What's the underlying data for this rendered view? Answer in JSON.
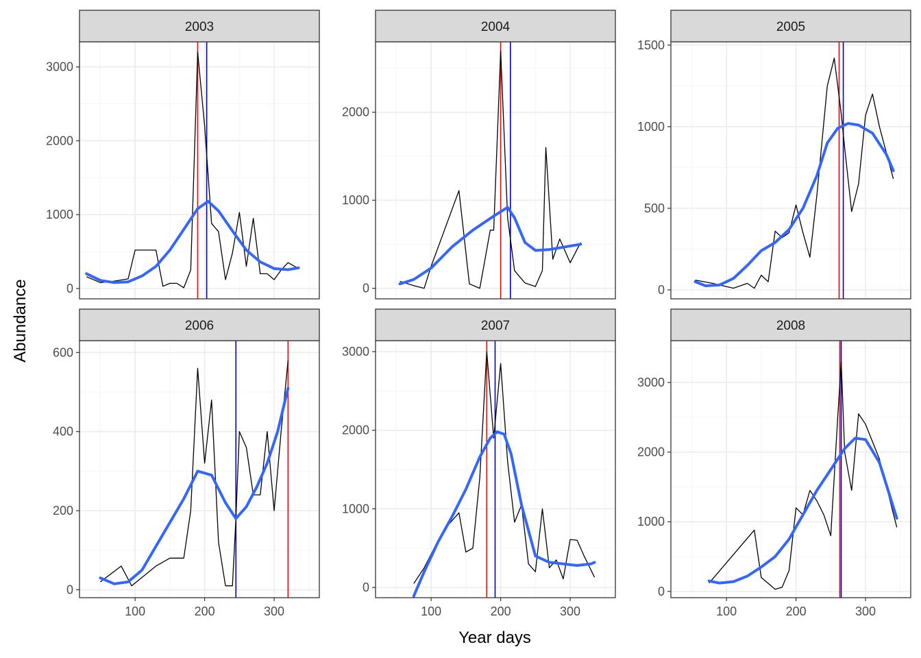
{
  "figure": {
    "xlabel": "Year days",
    "ylabel": "Abundance"
  },
  "colors": {
    "panel_border": "#333333",
    "strip_fill": "#d9d9d9",
    "grid_major": "#ebebeb",
    "grid_minor": "#f5f5f5",
    "observed": "#000000",
    "smooth": "#3366ff",
    "vline_red": "#ff0000",
    "vline_blue": "#0000cd"
  },
  "chart_data": [
    {
      "type": "line",
      "panel": "2003",
      "xlim": [
        20,
        365
      ],
      "ylim": [
        -140,
        3340
      ],
      "yticks": [
        0,
        1000,
        2000,
        3000
      ],
      "xticks": [
        100,
        200,
        300
      ],
      "series": [
        {
          "x": [
            30,
            50,
            70,
            90,
            100,
            130,
            140,
            150,
            160,
            170,
            180,
            190,
            200,
            210,
            220,
            230,
            240,
            250,
            260,
            270,
            280,
            290,
            300,
            310,
            320,
            335
          ],
          "y": [
            160,
            80,
            100,
            130,
            520,
            520,
            30,
            70,
            70,
            10,
            250,
            3200,
            2200,
            880,
            770,
            120,
            480,
            1030,
            300,
            950,
            200,
            200,
            120,
            250,
            350,
            270
          ]
        },
        {
          "x": [
            30,
            50,
            70,
            90,
            110,
            130,
            150,
            170,
            190,
            205,
            220,
            240,
            260,
            280,
            300,
            320,
            335
          ],
          "y": [
            200,
            110,
            80,
            90,
            170,
            300,
            520,
            800,
            1080,
            1180,
            1050,
            780,
            520,
            360,
            270,
            255,
            280
          ]
        }
      ],
      "vlines": [
        {
          "x": 190,
          "color": "red"
        },
        {
          "x": 203,
          "color": "blue"
        }
      ]
    },
    {
      "type": "line",
      "panel": "2004",
      "xlim": [
        20,
        365
      ],
      "ylim": [
        -120,
        2800
      ],
      "yticks": [
        0,
        1000,
        2000
      ],
      "xticks": [
        100,
        200,
        300
      ],
      "series": [
        {
          "x": [
            55,
            75,
            90,
            100,
            140,
            155,
            170,
            185,
            190,
            200,
            210,
            220,
            235,
            250,
            260,
            265,
            275,
            285,
            300,
            315
          ],
          "y": [
            80,
            30,
            0,
            250,
            1110,
            50,
            0,
            660,
            660,
            2700,
            800,
            200,
            60,
            20,
            200,
            1600,
            330,
            560,
            290,
            520
          ]
        },
        {
          "x": [
            55,
            75,
            100,
            130,
            160,
            190,
            210,
            220,
            235,
            250,
            270,
            300,
            315
          ],
          "y": [
            50,
            100,
            230,
            470,
            660,
            820,
            920,
            800,
            520,
            430,
            440,
            480,
            500
          ]
        }
      ],
      "vlines": [
        {
          "x": 200,
          "color": "red"
        },
        {
          "x": 214,
          "color": "blue"
        }
      ]
    },
    {
      "type": "line",
      "panel": "2005",
      "xlim": [
        20,
        365
      ],
      "ylim": [
        -55,
        1520
      ],
      "yticks": [
        0,
        500,
        1000,
        1500
      ],
      "xticks": [
        100,
        200,
        300
      ],
      "series": [
        {
          "x": [
            55,
            80,
            110,
            130,
            140,
            150,
            160,
            170,
            180,
            190,
            200,
            210,
            220,
            230,
            245,
            255,
            265,
            270,
            280,
            290,
            300,
            310,
            320,
            340
          ],
          "y": [
            60,
            40,
            10,
            40,
            10,
            90,
            50,
            360,
            320,
            350,
            520,
            350,
            200,
            580,
            1250,
            1420,
            1080,
            870,
            480,
            650,
            1070,
            1200,
            1000,
            680
          ]
        },
        {
          "x": [
            55,
            70,
            90,
            110,
            130,
            150,
            170,
            190,
            210,
            230,
            245,
            260,
            275,
            290,
            310,
            330,
            340
          ],
          "y": [
            50,
            25,
            30,
            70,
            150,
            240,
            290,
            370,
            500,
            700,
            900,
            990,
            1020,
            1010,
            960,
            830,
            730
          ]
        }
      ],
      "vlines": [
        {
          "x": 262,
          "color": "red"
        },
        {
          "x": 268,
          "color": "blue"
        }
      ]
    },
    {
      "type": "line",
      "panel": "2006",
      "xlim": [
        20,
        365
      ],
      "ylim": [
        -20,
        630
      ],
      "yticks": [
        0,
        200,
        400,
        600
      ],
      "xticks": [
        100,
        200,
        300
      ],
      "series": [
        {
          "x": [
            50,
            80,
            95,
            130,
            150,
            170,
            180,
            190,
            200,
            210,
            220,
            230,
            240,
            245,
            250,
            260,
            270,
            280,
            290,
            300,
            310,
            320
          ],
          "y": [
            20,
            60,
            10,
            60,
            80,
            80,
            200,
            560,
            320,
            480,
            120,
            10,
            10,
            180,
            400,
            360,
            240,
            240,
            400,
            200,
            400,
            580
          ]
        },
        {
          "x": [
            50,
            70,
            90,
            110,
            130,
            150,
            170,
            190,
            210,
            230,
            245,
            260,
            275,
            290,
            305,
            320
          ],
          "y": [
            30,
            15,
            20,
            50,
            110,
            170,
            230,
            300,
            290,
            220,
            180,
            210,
            260,
            320,
            400,
            510
          ]
        }
      ],
      "vlines": [
        {
          "x": 245,
          "color": "blue"
        },
        {
          "x": 320,
          "color": "red"
        }
      ]
    },
    {
      "type": "line",
      "panel": "2007",
      "xlim": [
        20,
        365
      ],
      "ylim": [
        -130,
        3140
      ],
      "yticks": [
        0,
        1000,
        2000,
        3000
      ],
      "xticks": [
        100,
        200,
        300
      ],
      "series": [
        {
          "x": [
            75,
            90,
            110,
            125,
            140,
            150,
            160,
            170,
            180,
            190,
            200,
            210,
            220,
            230,
            240,
            250,
            260,
            270,
            280,
            290,
            300,
            310,
            320,
            335
          ],
          "y": [
            50,
            250,
            600,
            800,
            950,
            450,
            500,
            1400,
            3000,
            1900,
            2850,
            1600,
            830,
            1050,
            300,
            200,
            1000,
            250,
            350,
            110,
            610,
            600,
            400,
            130
          ]
        },
        {
          "x": [
            75,
            90,
            110,
            130,
            150,
            170,
            185,
            195,
            205,
            215,
            230,
            250,
            270,
            290,
            310,
            330,
            335
          ],
          "y": [
            -110,
            200,
            580,
            900,
            1250,
            1660,
            1900,
            1980,
            1950,
            1700,
            1050,
            400,
            320,
            300,
            280,
            300,
            320
          ]
        }
      ],
      "vlines": [
        {
          "x": 180,
          "color": "red"
        },
        {
          "x": 192,
          "color": "blue"
        }
      ]
    },
    {
      "type": "line",
      "panel": "2008",
      "xlim": [
        20,
        365
      ],
      "ylim": [
        -90,
        3600
      ],
      "yticks": [
        0,
        1000,
        2000,
        3000
      ],
      "xticks": [
        100,
        200,
        300
      ],
      "series": [
        {
          "x": [
            75,
            140,
            150,
            170,
            180,
            190,
            200,
            210,
            220,
            230,
            240,
            250,
            260,
            265,
            270,
            280,
            290,
            300,
            320,
            345
          ],
          "y": [
            120,
            880,
            200,
            30,
            60,
            300,
            1200,
            1100,
            1450,
            1300,
            1100,
            800,
            2500,
            3300,
            2000,
            1450,
            2550,
            2400,
            1900,
            920
          ]
        },
        {
          "x": [
            75,
            90,
            110,
            130,
            150,
            170,
            190,
            210,
            230,
            250,
            270,
            285,
            300,
            320,
            345
          ],
          "y": [
            150,
            120,
            140,
            220,
            350,
            500,
            750,
            1100,
            1450,
            1750,
            2050,
            2200,
            2180,
            1850,
            1050
          ]
        }
      ],
      "vlines": [
        {
          "x": 263,
          "color": "red"
        },
        {
          "x": 265,
          "color": "blue"
        }
      ]
    }
  ]
}
